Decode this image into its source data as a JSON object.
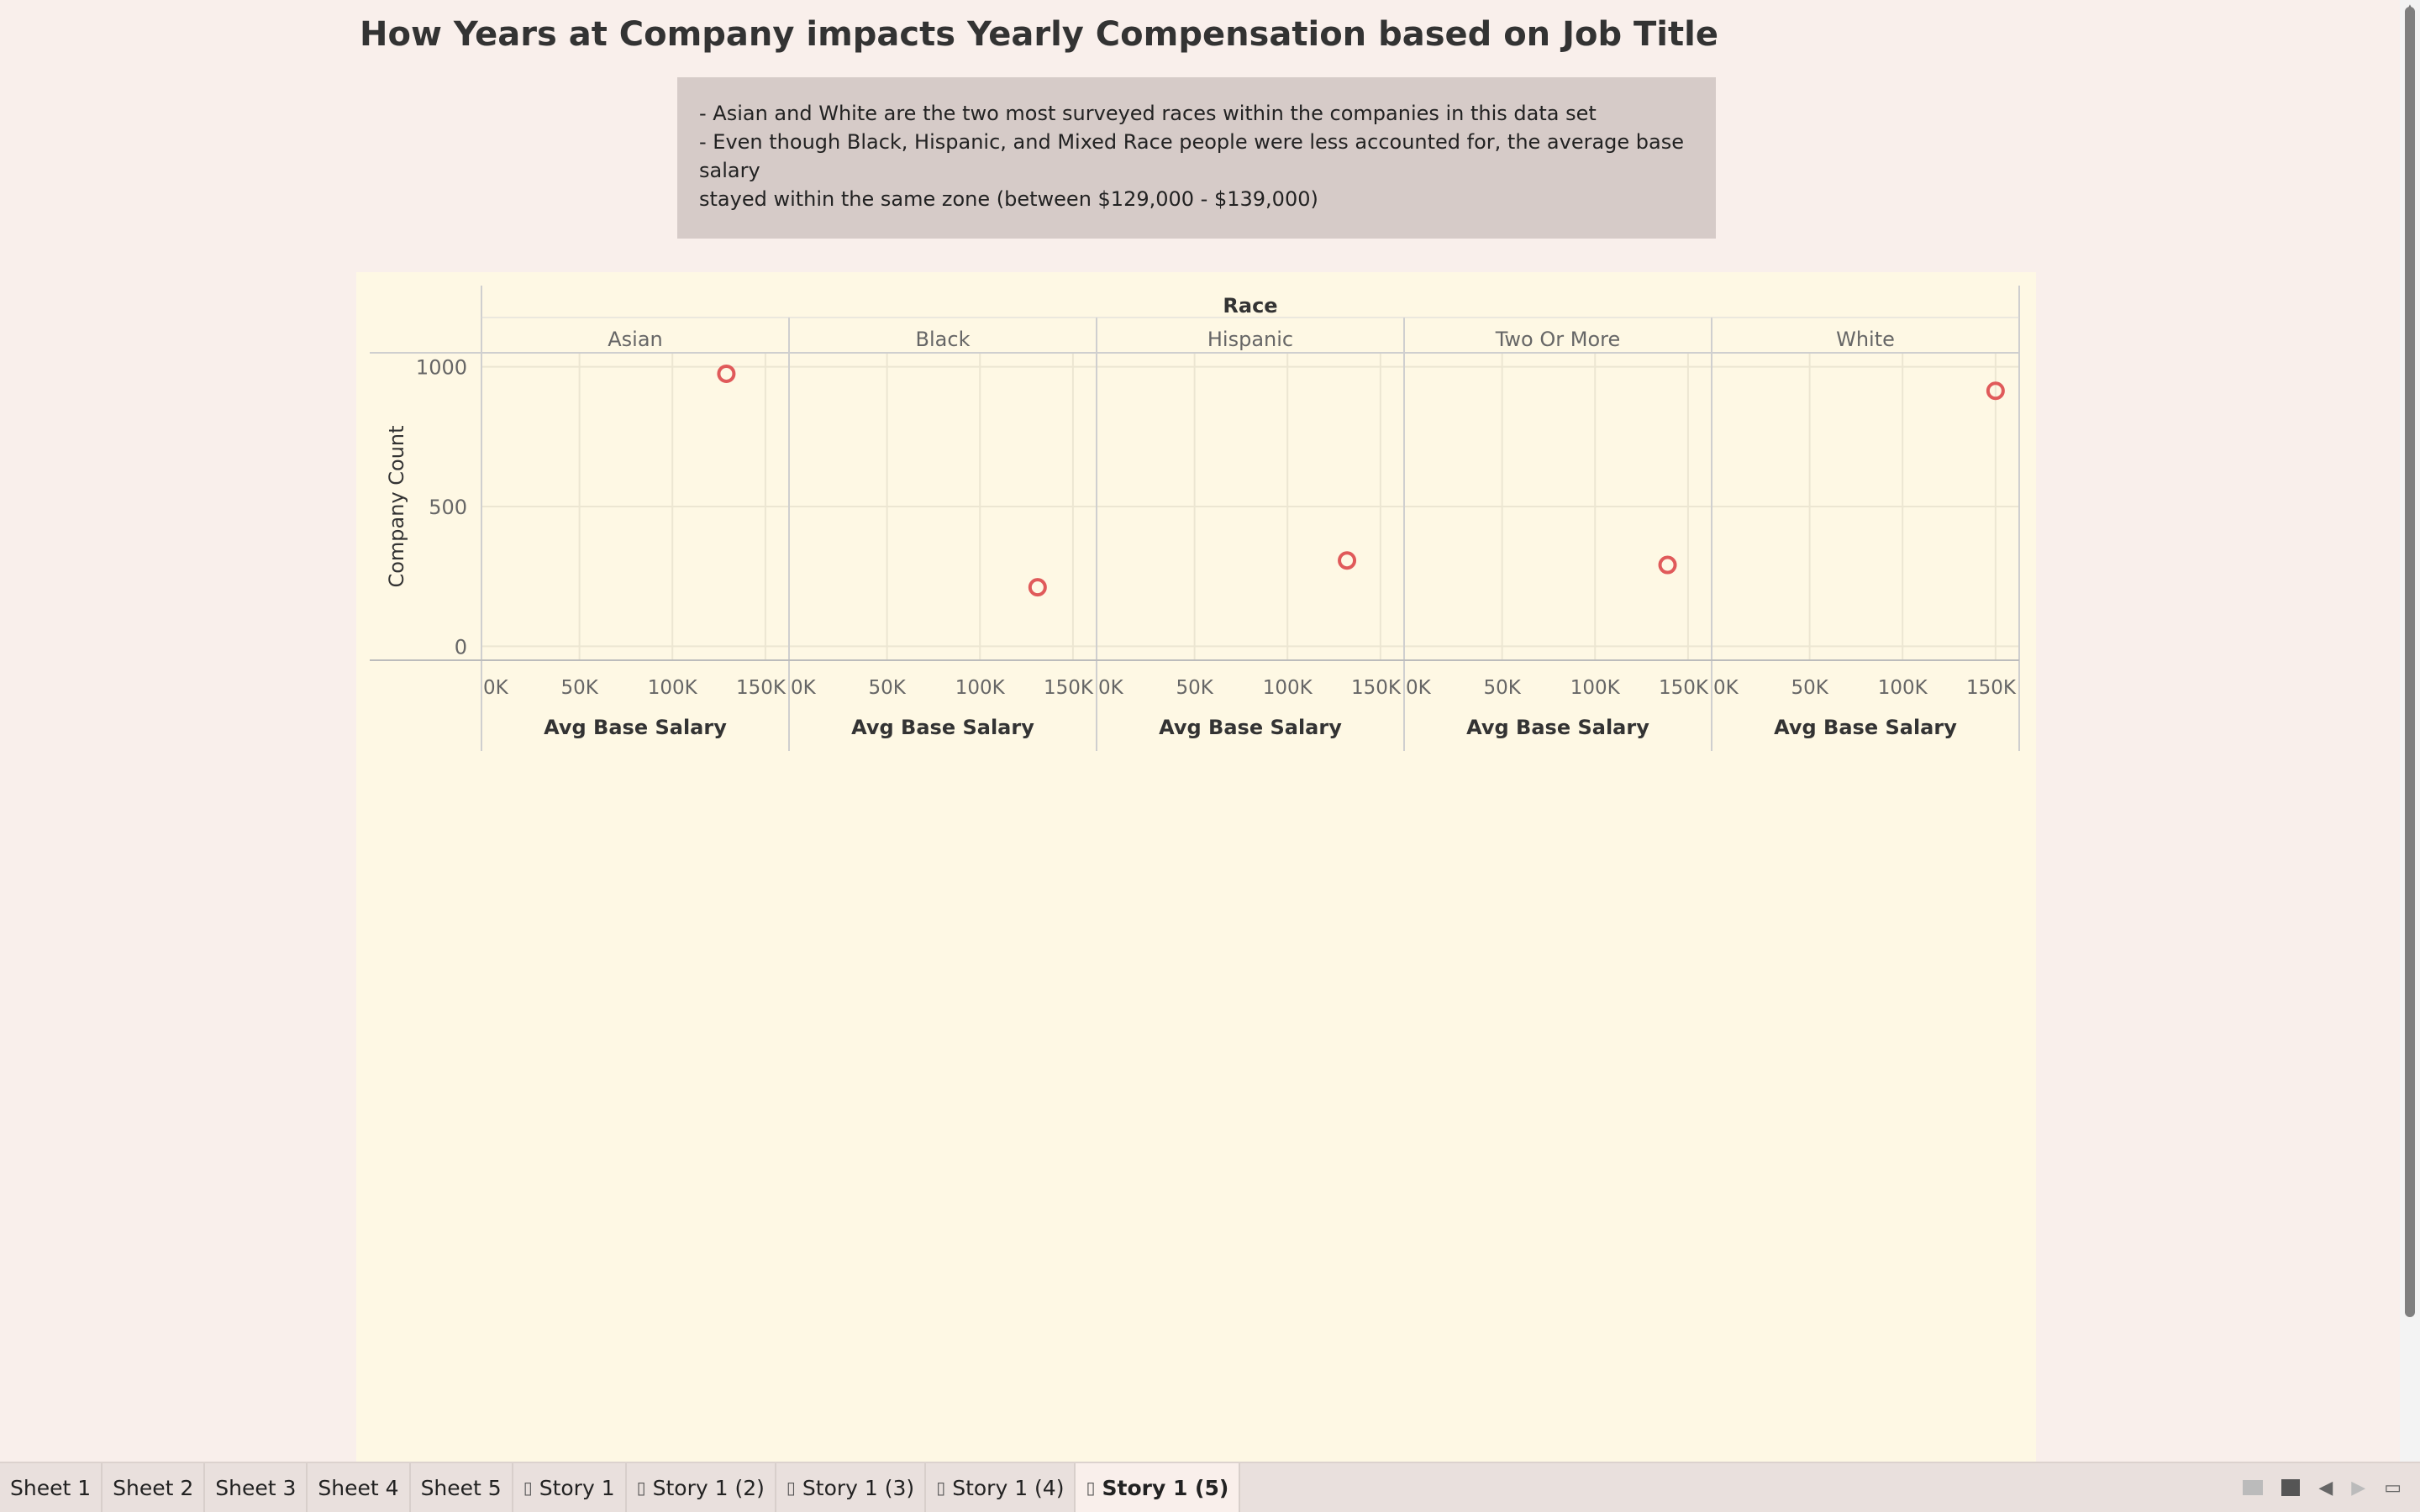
{
  "story": {
    "title": "How Years at Company impacts Yearly Compensation based on Job Title",
    "caption_lines": [
      "- Asian and White are the two most surveyed races within the companies in this data set",
      "- Even though Black, Hispanic, and Mixed Race people were less accounted for, the average base salary",
      "stayed within the same zone (between $129,000 - $139,000)"
    ]
  },
  "colors": {
    "background": "#f9efeb",
    "canvas": "#fef8e4",
    "caption_box": "#d6cbc8",
    "mark": "#e05a5a"
  },
  "chart_data": {
    "type": "scatter",
    "column_header": "Race",
    "panels": [
      "Asian",
      "Black",
      "Hispanic",
      "Two Or More",
      "White"
    ],
    "x_field": "Avg Base Salary",
    "xlabel": "Avg Base Salary",
    "xlim": [
      0,
      160000
    ],
    "x_ticks": [
      0,
      50000,
      100000,
      150000
    ],
    "x_tick_labels": [
      "0K",
      "50K",
      "100K",
      "150K"
    ],
    "ylabel": "Company Count",
    "ylim": [
      -50,
      1050
    ],
    "y_ticks": [
      0,
      500,
      1000
    ],
    "y_tick_labels": [
      "0",
      "500",
      "1000"
    ],
    "gridlines": true,
    "points": [
      {
        "panel": "Asian",
        "x": 129000,
        "y": 975
      },
      {
        "panel": "Black",
        "x": 131000,
        "y": 211
      },
      {
        "panel": "Hispanic",
        "x": 132000,
        "y": 307
      },
      {
        "panel": "Two Or More",
        "x": 139000,
        "y": 291
      },
      {
        "panel": "White",
        "x": 150000,
        "y": 914
      }
    ]
  },
  "tabs": [
    {
      "label": "Sheet 1",
      "icon": "",
      "active": false
    },
    {
      "label": "Sheet 2",
      "icon": "",
      "active": false
    },
    {
      "label": "Sheet 3",
      "icon": "",
      "active": false
    },
    {
      "label": "Sheet 4",
      "icon": "",
      "active": false
    },
    {
      "label": "Sheet 5",
      "icon": "",
      "active": false
    },
    {
      "label": "Story 1",
      "icon": "story-icon",
      "active": false
    },
    {
      "label": "Story 1 (2)",
      "icon": "story-icon",
      "active": false
    },
    {
      "label": "Story 1 (3)",
      "icon": "story-icon",
      "active": false
    },
    {
      "label": "Story 1 (4)",
      "icon": "story-icon",
      "active": false
    },
    {
      "label": "Story 1 (5)",
      "icon": "story-icon",
      "active": true
    }
  ],
  "statusbar_icons": [
    "sheet-grid-icon",
    "present-icon",
    "prev-icon",
    "next-icon",
    "presentation-mode-icon"
  ]
}
